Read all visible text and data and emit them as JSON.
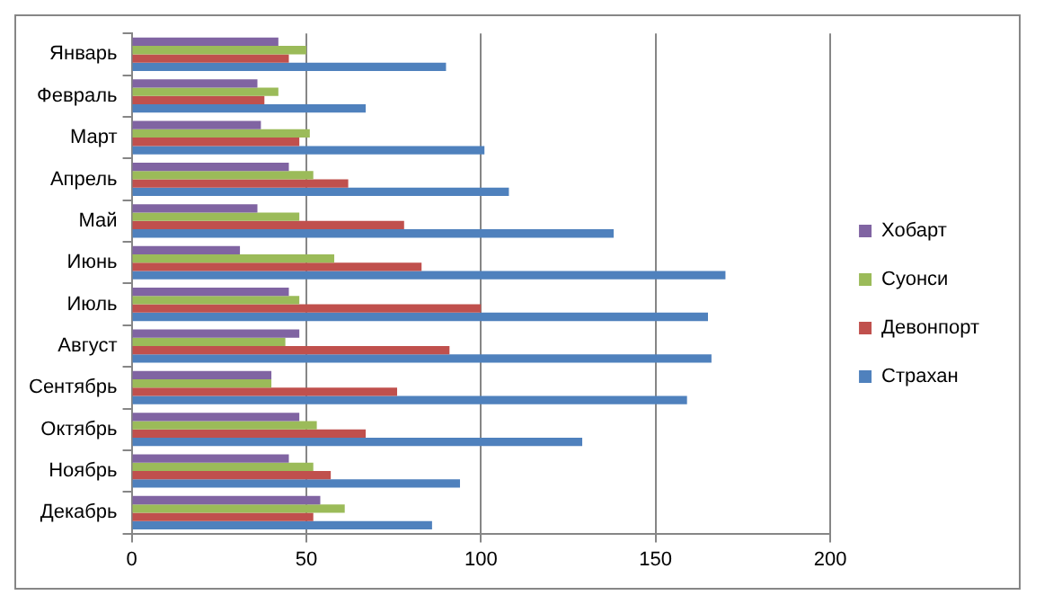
{
  "chart_data": {
    "type": "bar",
    "orientation": "horizontal",
    "categories": [
      "Январь",
      "Февраль",
      "Март",
      "Апрель",
      "Май",
      "Июнь",
      "Июль",
      "Август",
      "Сентябрь",
      "Октябрь",
      "Ноябрь",
      "Декабрь"
    ],
    "series": [
      {
        "name": "Хобарт",
        "color": "#8064a2",
        "values": [
          42,
          36,
          37,
          45,
          36,
          31,
          45,
          48,
          40,
          48,
          45,
          54
        ]
      },
      {
        "name": "Суонси",
        "color": "#9bbb59",
        "values": [
          50,
          42,
          51,
          52,
          48,
          58,
          48,
          44,
          40,
          53,
          52,
          61
        ]
      },
      {
        "name": "Девонпорт",
        "color": "#c0504d",
        "values": [
          45,
          38,
          48,
          62,
          78,
          83,
          100,
          91,
          76,
          67,
          57,
          52
        ]
      },
      {
        "name": "Страхан",
        "color": "#4f81bd",
        "values": [
          90,
          67,
          101,
          108,
          138,
          170,
          165,
          166,
          159,
          129,
          94,
          86
        ]
      }
    ],
    "xlim": [
      0,
      200
    ],
    "xticks": [
      0,
      50,
      100,
      150,
      200
    ],
    "grid": "x",
    "legend": "right"
  }
}
